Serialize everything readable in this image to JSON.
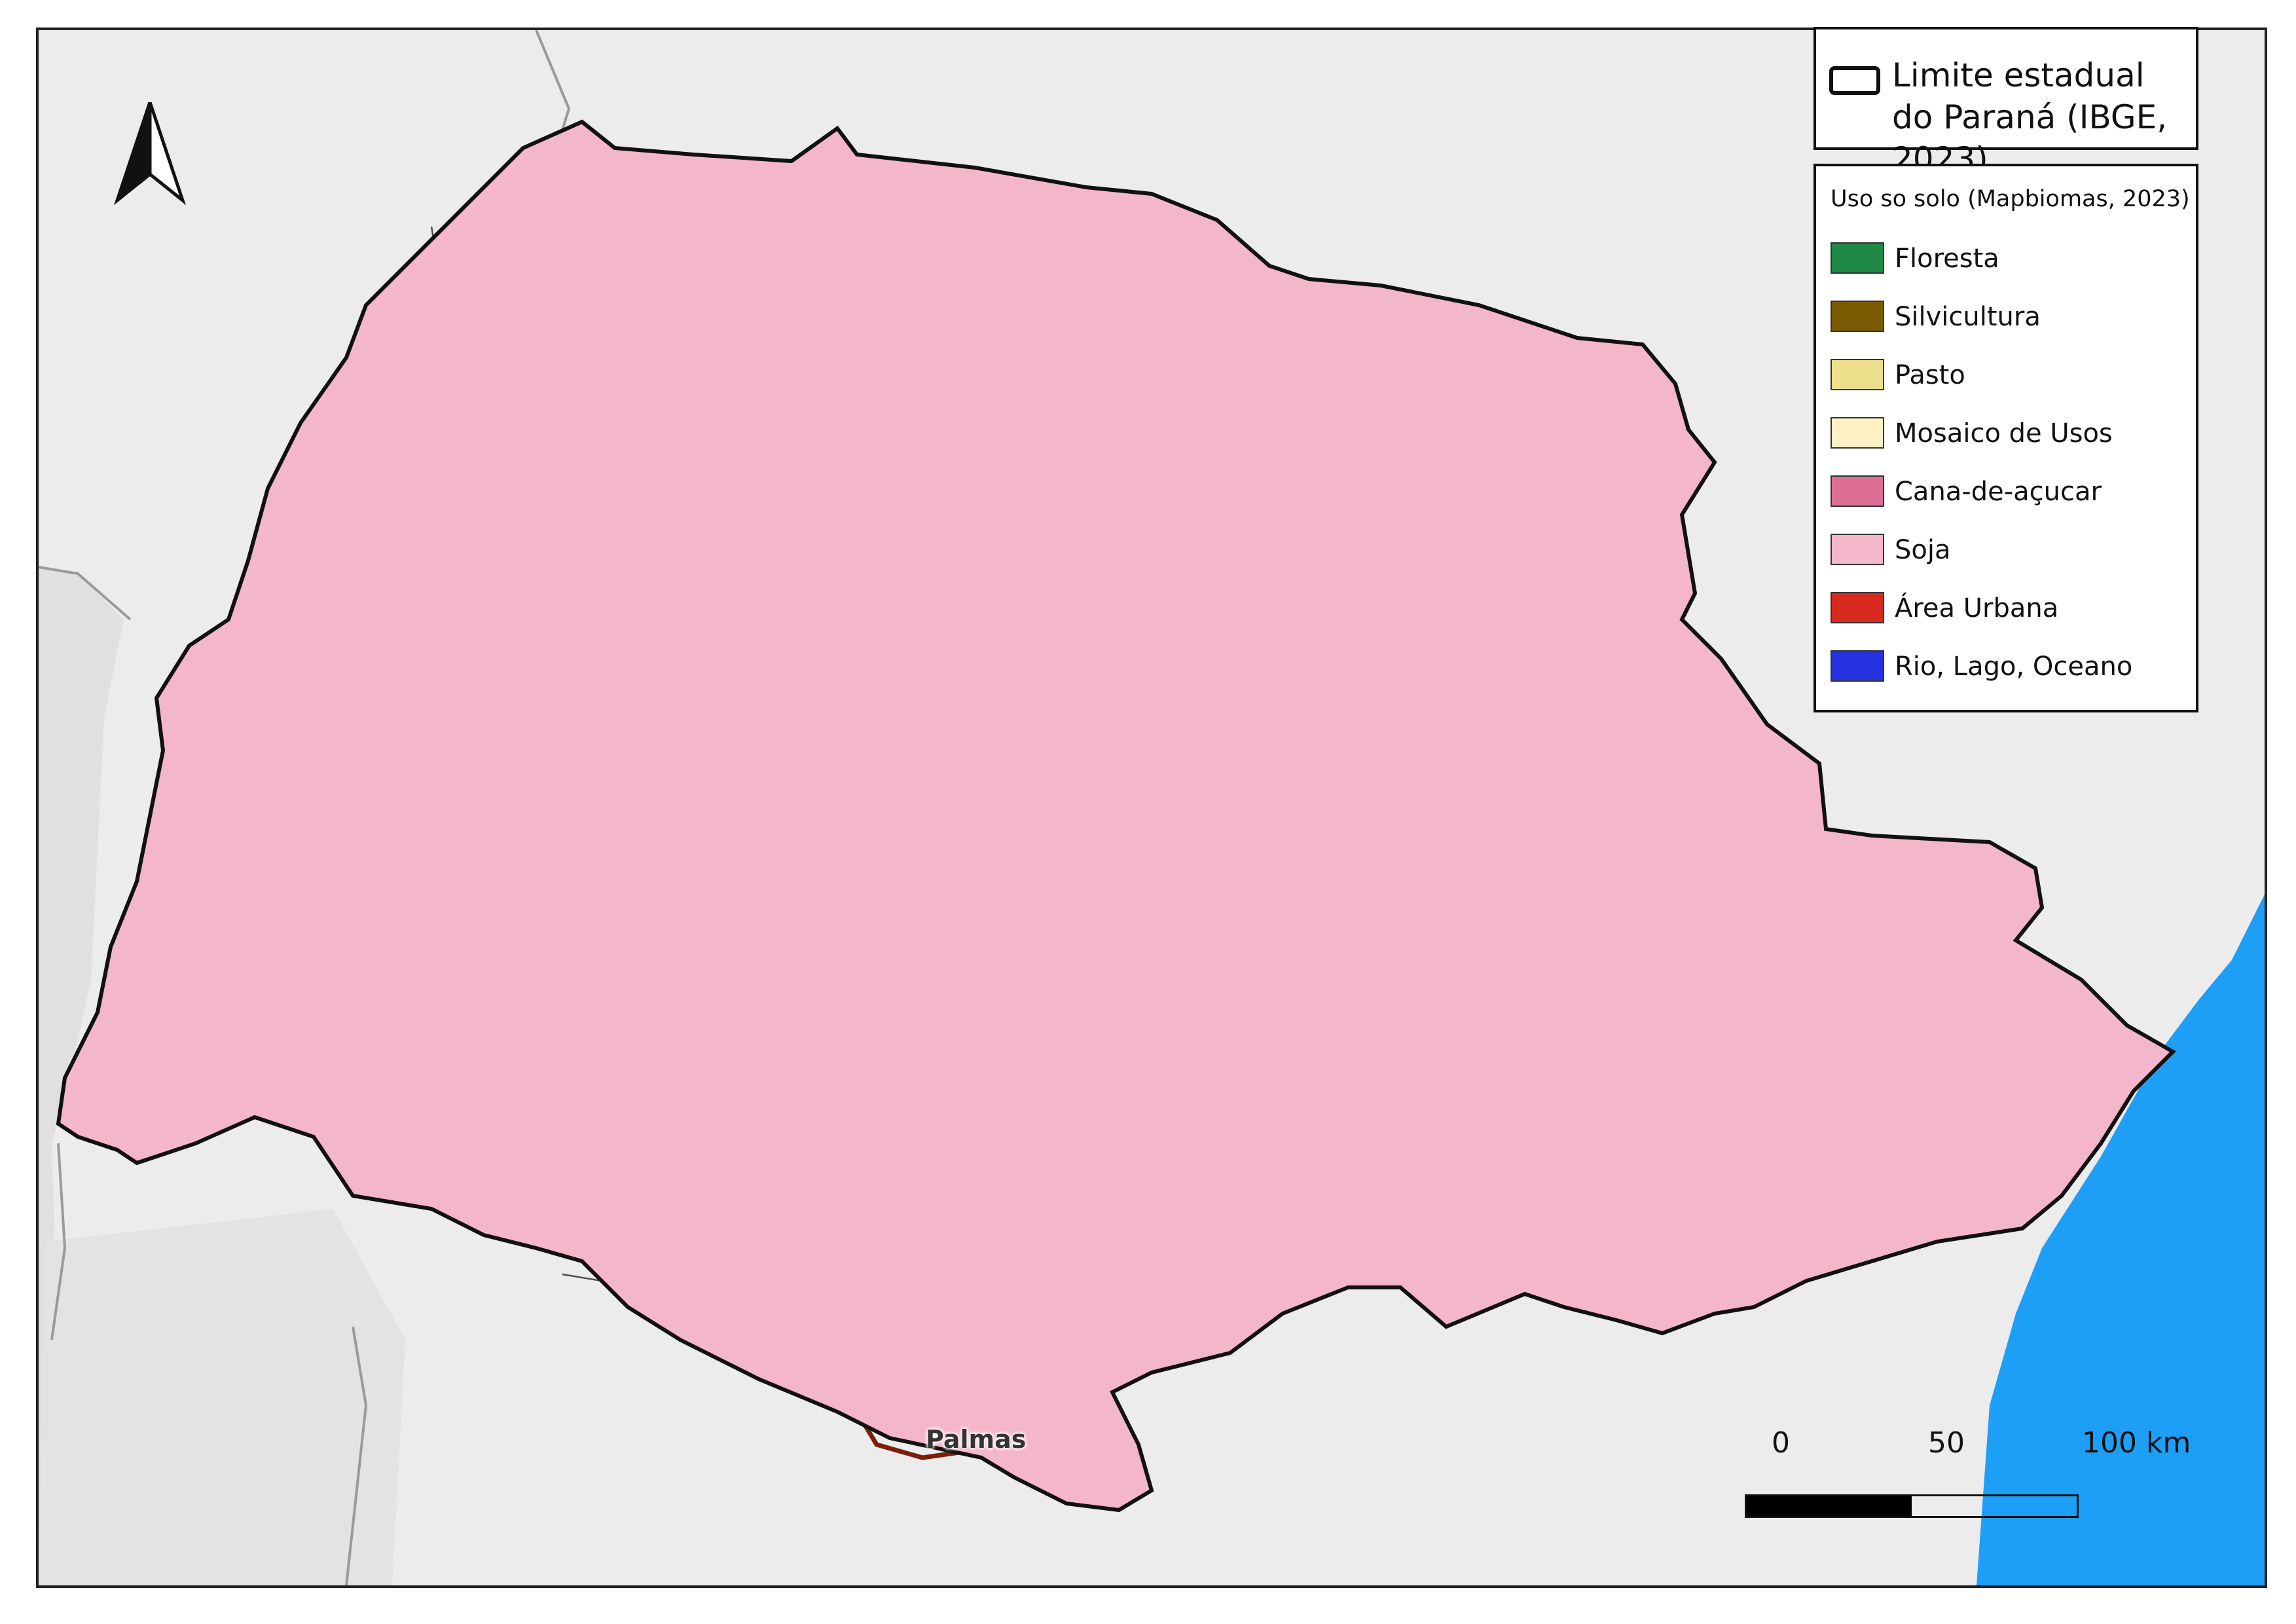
{
  "legend_boundary": {
    "label": "Limite estadual do Paraná (IBGE, 2023)",
    "stroke_color": "#111111"
  },
  "legend_landuse": {
    "title": "Uso so solo (Mapbiomas, 2023)",
    "items": [
      {
        "label": "Floresta",
        "color": "#1f8a47"
      },
      {
        "label": "Silvicultura",
        "color": "#7a5a00"
      },
      {
        "label": "Pasto",
        "color": "#ede08c"
      },
      {
        "label": "Mosaico de Usos",
        "color": "#fff1c4"
      },
      {
        "label": "Cana-de-açucar",
        "color": "#dd6f95"
      },
      {
        "label": "Soja",
        "color": "#f4b6c9"
      },
      {
        "label": "Área Urbana",
        "color": "#d92a1f"
      },
      {
        "label": "Rio, Lago, Oceano",
        "color": "#2432e0"
      }
    ]
  },
  "map": {
    "highlight_label": "Palmas",
    "highlight_color": "#7a1f0a",
    "ocean_color": "#1e9ff7",
    "background_color": "#ececec",
    "neighbor_color": "#e0e0e0"
  },
  "scale": {
    "tick_0": "0",
    "tick_1": "50",
    "tick_2": "100 km"
  },
  "north_arrow": {
    "icon": "north-arrow-icon"
  }
}
